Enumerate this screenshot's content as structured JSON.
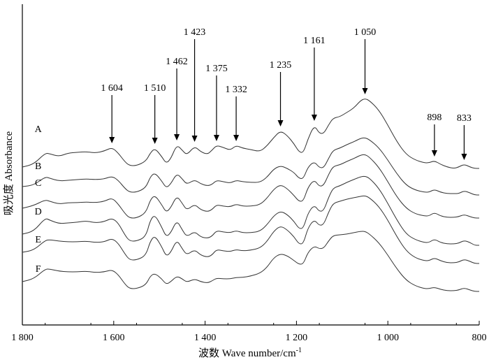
{
  "chart_data": {
    "type": "line",
    "xlabel": "波数 Wave number/cm",
    "xlabel_superscript": "-1",
    "ylabel": "吸光度 Absorbance",
    "xlim": [
      1800,
      800
    ],
    "x_reversed": true,
    "x_ticks": [
      {
        "value": 1800,
        "label": "1 800"
      },
      {
        "value": 1600,
        "label": "1 600"
      },
      {
        "value": 1400,
        "label": "1 400"
      },
      {
        "value": 1200,
        "label": "1 200"
      },
      {
        "value": 1000,
        "label": "1 000"
      },
      {
        "value": 800,
        "label": "800"
      }
    ],
    "y_ticks": false,
    "grid": false,
    "peak_annotations": [
      {
        "x": 1604,
        "label": "1 604"
      },
      {
        "x": 1510,
        "label": "1 510"
      },
      {
        "x": 1462,
        "label": "1 462"
      },
      {
        "x": 1423,
        "label": "1 423"
      },
      {
        "x": 1375,
        "label": "1 375"
      },
      {
        "x": 1332,
        "label": "1 332"
      },
      {
        "x": 1235,
        "label": "1 235"
      },
      {
        "x": 1161,
        "label": "1 161"
      },
      {
        "x": 1050,
        "label": "1 050"
      },
      {
        "x": 898,
        "label": "898"
      },
      {
        "x": 833,
        "label": "833"
      }
    ],
    "x": [
      1800,
      1775,
      1750,
      1740,
      1720,
      1700,
      1680,
      1660,
      1640,
      1620,
      1604,
      1590,
      1575,
      1565,
      1550,
      1530,
      1520,
      1510,
      1495,
      1485,
      1475,
      1462,
      1450,
      1440,
      1423,
      1410,
      1395,
      1385,
      1375,
      1360,
      1345,
      1332,
      1318,
      1300,
      1280,
      1265,
      1250,
      1235,
      1220,
      1205,
      1195,
      1185,
      1175,
      1161,
      1150,
      1140,
      1130,
      1120,
      1105,
      1090,
      1075,
      1060,
      1050,
      1040,
      1020,
      1000,
      980,
      960,
      940,
      920,
      910,
      898,
      885,
      870,
      855,
      845,
      833,
      820,
      810,
      800
    ],
    "series": [
      {
        "name": "A",
        "values": [
          0.0,
          0.04,
          0.2,
          0.19,
          0.15,
          0.2,
          0.21,
          0.22,
          0.2,
          0.23,
          0.28,
          0.2,
          0.07,
          0.02,
          0.02,
          0.08,
          0.2,
          0.27,
          0.15,
          0.05,
          0.12,
          0.32,
          0.24,
          0.17,
          0.3,
          0.22,
          0.18,
          0.24,
          0.31,
          0.28,
          0.24,
          0.31,
          0.27,
          0.25,
          0.22,
          0.3,
          0.42,
          0.52,
          0.45,
          0.33,
          0.22,
          0.2,
          0.4,
          0.6,
          0.48,
          0.48,
          0.6,
          0.7,
          0.72,
          0.78,
          0.84,
          0.95,
          0.98,
          0.95,
          0.82,
          0.6,
          0.36,
          0.18,
          0.1,
          0.06,
          0.06,
          0.09,
          0.04,
          0.0,
          -0.02,
          0.0,
          0.04,
          0.0,
          -0.02,
          -0.02
        ]
      },
      {
        "name": "B",
        "values": [
          0.0,
          0.02,
          0.14,
          0.12,
          0.08,
          0.09,
          0.1,
          0.11,
          0.1,
          0.11,
          0.15,
          0.09,
          -0.03,
          -0.08,
          -0.08,
          -0.02,
          0.14,
          0.2,
          0.08,
          -0.02,
          0.04,
          0.19,
          0.11,
          0.03,
          0.1,
          0.04,
          0.01,
          0.03,
          0.09,
          0.07,
          0.05,
          0.09,
          0.07,
          0.06,
          0.06,
          0.13,
          0.25,
          0.3,
          0.26,
          0.2,
          0.12,
          0.11,
          0.28,
          0.36,
          0.27,
          0.27,
          0.4,
          0.52,
          0.55,
          0.6,
          0.64,
          0.69,
          0.7,
          0.67,
          0.56,
          0.38,
          0.18,
          0.02,
          -0.05,
          -0.08,
          -0.08,
          -0.04,
          -0.08,
          -0.1,
          -0.1,
          -0.1,
          -0.06,
          -0.09,
          -0.12,
          -0.12
        ]
      },
      {
        "name": "C",
        "values": [
          0.0,
          0.04,
          0.12,
          0.1,
          0.06,
          0.08,
          0.08,
          0.09,
          0.08,
          0.1,
          0.15,
          0.06,
          -0.08,
          -0.14,
          -0.14,
          -0.07,
          0.12,
          0.19,
          0.05,
          -0.06,
          0.01,
          0.18,
          0.07,
          -0.03,
          0.06,
          -0.02,
          -0.05,
          -0.02,
          0.05,
          0.03,
          0.02,
          0.06,
          0.03,
          0.03,
          0.05,
          0.14,
          0.27,
          0.34,
          0.28,
          0.18,
          0.1,
          0.1,
          0.3,
          0.41,
          0.31,
          0.33,
          0.48,
          0.6,
          0.62,
          0.67,
          0.71,
          0.76,
          0.77,
          0.73,
          0.59,
          0.38,
          0.16,
          0.0,
          -0.08,
          -0.11,
          -0.11,
          -0.06,
          -0.11,
          -0.13,
          -0.13,
          -0.12,
          -0.09,
          -0.12,
          -0.14,
          -0.14
        ]
      },
      {
        "name": "D",
        "values": [
          0.0,
          0.04,
          0.23,
          0.2,
          0.15,
          0.16,
          0.17,
          0.19,
          0.16,
          0.18,
          0.23,
          0.16,
          -0.02,
          -0.1,
          -0.1,
          -0.04,
          0.2,
          0.28,
          0.1,
          -0.04,
          0.02,
          0.2,
          0.06,
          -0.04,
          0.04,
          -0.04,
          -0.06,
          -0.03,
          0.05,
          0.03,
          0.02,
          0.05,
          0.02,
          0.02,
          0.04,
          0.13,
          0.26,
          0.33,
          0.28,
          0.18,
          0.08,
          0.08,
          0.3,
          0.42,
          0.32,
          0.34,
          0.52,
          0.66,
          0.69,
          0.74,
          0.78,
          0.82,
          0.83,
          0.8,
          0.66,
          0.44,
          0.2,
          0.0,
          -0.08,
          -0.12,
          -0.12,
          -0.07,
          -0.12,
          -0.14,
          -0.14,
          -0.13,
          -0.09,
          -0.12,
          -0.16,
          -0.16
        ]
      },
      {
        "name": "E",
        "values": [
          0.0,
          0.03,
          0.17,
          0.18,
          0.16,
          0.15,
          0.15,
          0.16,
          0.14,
          0.15,
          0.2,
          0.13,
          -0.03,
          -0.11,
          -0.11,
          -0.05,
          0.16,
          0.24,
          0.08,
          -0.06,
          0.0,
          0.18,
          0.05,
          -0.04,
          0.04,
          -0.04,
          -0.07,
          -0.04,
          0.04,
          0.02,
          0.01,
          0.04,
          0.02,
          0.03,
          0.06,
          0.15,
          0.3,
          0.38,
          0.32,
          0.22,
          0.12,
          0.12,
          0.35,
          0.47,
          0.38,
          0.4,
          0.57,
          0.7,
          0.73,
          0.76,
          0.78,
          0.8,
          0.81,
          0.78,
          0.66,
          0.46,
          0.22,
          0.02,
          -0.08,
          -0.12,
          -0.12,
          -0.08,
          -0.12,
          -0.15,
          -0.15,
          -0.14,
          -0.1,
          -0.13,
          -0.16,
          -0.16
        ]
      },
      {
        "name": "F",
        "values": [
          0.0,
          0.04,
          0.18,
          0.18,
          0.15,
          0.14,
          0.14,
          0.15,
          0.13,
          0.14,
          0.17,
          0.1,
          -0.04,
          -0.1,
          -0.1,
          -0.05,
          0.08,
          0.12,
          0.04,
          -0.04,
          0.0,
          0.08,
          0.04,
          -0.01,
          0.04,
          0.0,
          -0.02,
          0.01,
          0.05,
          0.04,
          0.04,
          0.06,
          0.06,
          0.08,
          0.12,
          0.2,
          0.34,
          0.4,
          0.37,
          0.3,
          0.25,
          0.25,
          0.42,
          0.51,
          0.47,
          0.48,
          0.58,
          0.66,
          0.67,
          0.68,
          0.7,
          0.72,
          0.72,
          0.68,
          0.56,
          0.38,
          0.18,
          0.02,
          -0.06,
          -0.1,
          -0.1,
          -0.08,
          -0.11,
          -0.13,
          -0.13,
          -0.12,
          -0.09,
          -0.12,
          -0.14,
          -0.14
        ]
      }
    ]
  }
}
